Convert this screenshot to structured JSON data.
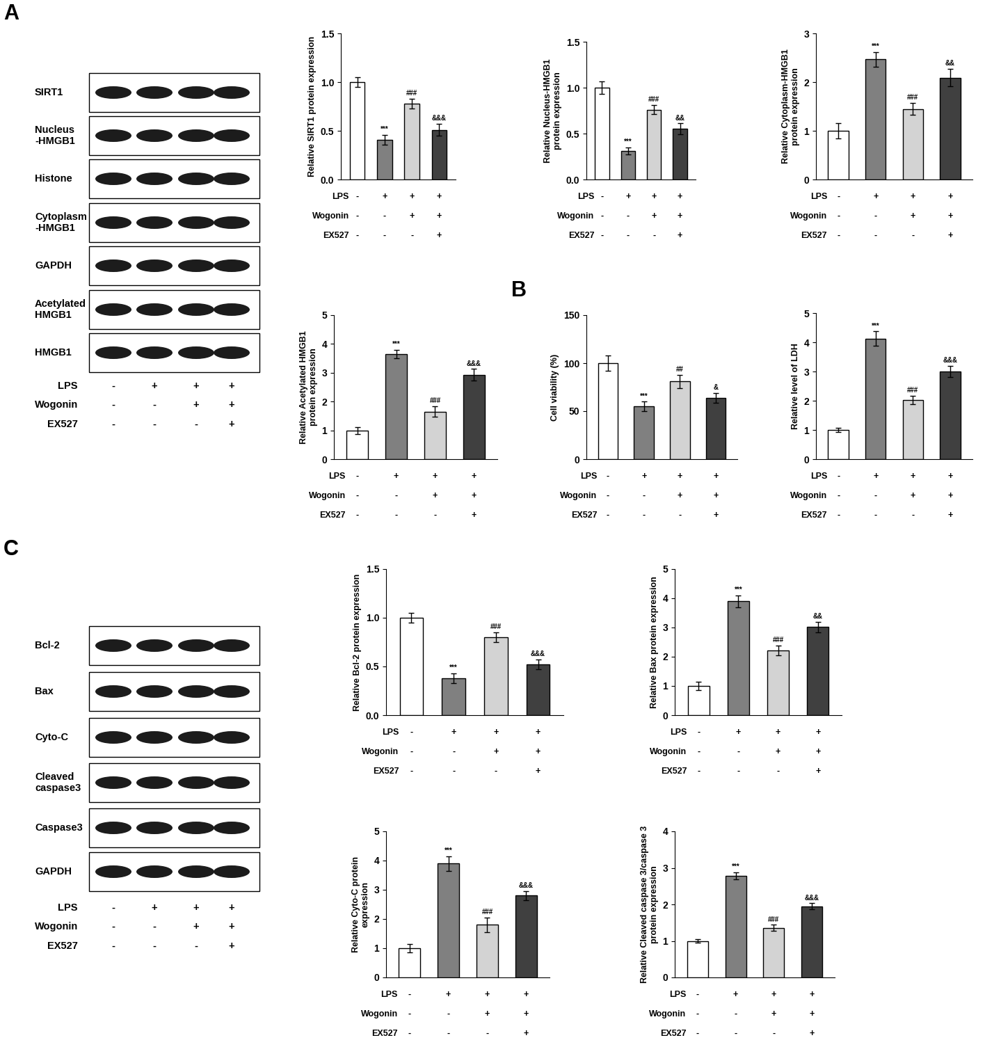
{
  "panel_labels": [
    "A",
    "B",
    "C"
  ],
  "blots": [
    {
      "panel": "A",
      "rows": [
        "SIRT1",
        "Nucleus\n-HMGB1",
        "Histone",
        "Cytoplasm\n-HMGB1",
        "GAPDH",
        "Acetylated\nHMGB1",
        "HMGB1"
      ],
      "treatments": [
        {
          "name": "LPS",
          "signs": [
            "-",
            "+",
            "+",
            "+"
          ]
        },
        {
          "name": "Wogonin",
          "signs": [
            "-",
            "-",
            "+",
            "+"
          ]
        },
        {
          "name": "EX527",
          "signs": [
            "-",
            "-",
            "-",
            "+"
          ]
        }
      ]
    },
    {
      "panel": "C",
      "rows": [
        "Bcl-2",
        "Bax",
        "Cyto-C",
        "Cleaved\ncaspase3",
        "Caspase3",
        "GAPDH"
      ],
      "treatments": [
        {
          "name": "LPS",
          "signs": [
            "-",
            "+",
            "+",
            "+"
          ]
        },
        {
          "name": "Wogonin",
          "signs": [
            "-",
            "-",
            "+",
            "+"
          ]
        },
        {
          "name": "EX527",
          "signs": [
            "-",
            "-",
            "-",
            "+"
          ]
        }
      ]
    }
  ],
  "chart_data": [
    {
      "type": "bar",
      "panel": "A",
      "y_label": "Relative SIRT1 protein expression",
      "categories": [
        null,
        null,
        null,
        null
      ],
      "values": [
        1.0,
        0.41,
        0.78,
        0.51
      ],
      "errors": [
        0.05,
        0.05,
        0.05,
        0.06
      ],
      "annotations": [
        null,
        "***",
        "###",
        "&&&"
      ],
      "colors": [
        "#ffffff",
        "#808080",
        "#d3d3d3",
        "#404040"
      ],
      "ylim": [
        0,
        1.5
      ],
      "yticks": [
        {
          "value": 0,
          "label": "0.0"
        },
        {
          "value": 0.5,
          "label": "0.5"
        },
        {
          "value": 1,
          "label": "1.0"
        },
        {
          "value": 1.5,
          "label": "1.5"
        }
      ],
      "treatments": [
        {
          "name": "LPS",
          "signs": [
            "-",
            "+",
            "+",
            "+"
          ]
        },
        {
          "name": "Wogonin",
          "signs": [
            "-",
            "-",
            "+",
            "+"
          ]
        },
        {
          "name": "EX527",
          "signs": [
            "-",
            "-",
            "-",
            "+"
          ]
        }
      ]
    },
    {
      "type": "bar",
      "panel": "A",
      "y_label": "Relative Nucleus-HMGB1\nprotein expression",
      "categories": [
        null,
        null,
        null,
        null
      ],
      "values": [
        1.0,
        0.31,
        0.76,
        0.55
      ],
      "errors": [
        0.07,
        0.04,
        0.05,
        0.06
      ],
      "annotations": [
        null,
        "***",
        "###",
        "&&"
      ],
      "colors": [
        "#ffffff",
        "#808080",
        "#d3d3d3",
        "#404040"
      ],
      "ylim": [
        0,
        1.5
      ],
      "yticks": [
        {
          "value": 0,
          "label": "0.0"
        },
        {
          "value": 0.5,
          "label": "0.5"
        },
        {
          "value": 1,
          "label": "1.0"
        },
        {
          "value": 1.5,
          "label": "1.5"
        }
      ],
      "treatments": [
        {
          "name": "LPS",
          "signs": [
            "-",
            "+",
            "+",
            "+"
          ]
        },
        {
          "name": "Wogonin",
          "signs": [
            "-",
            "-",
            "+",
            "+"
          ]
        },
        {
          "name": "EX527",
          "signs": [
            "-",
            "-",
            "-",
            "+"
          ]
        }
      ]
    },
    {
      "type": "bar",
      "panel": "A",
      "y_label": "Relative Cytoplasm-HMGB1\nprotein expression",
      "categories": [
        null,
        null,
        null,
        null
      ],
      "values": [
        1.0,
        2.47,
        1.45,
        2.09
      ],
      "errors": [
        0.16,
        0.15,
        0.12,
        0.18
      ],
      "annotations": [
        null,
        "***",
        "###",
        "&&"
      ],
      "colors": [
        "#ffffff",
        "#808080",
        "#d3d3d3",
        "#404040"
      ],
      "ylim": [
        0,
        3
      ],
      "yticks": [
        0,
        1,
        2,
        3
      ],
      "treatments": [
        {
          "name": "LPS",
          "signs": [
            "-",
            "+",
            "+",
            "+"
          ]
        },
        {
          "name": "Wogonin",
          "signs": [
            "-",
            "-",
            "+",
            "+"
          ]
        },
        {
          "name": "EX527",
          "signs": [
            "-",
            "-",
            "-",
            "+"
          ]
        }
      ]
    },
    {
      "type": "bar",
      "panel": "A",
      "y_label": "Relative Acetylated HMGB1\nprotein expression",
      "categories": [
        null,
        null,
        null,
        null
      ],
      "values": [
        1.0,
        3.65,
        1.65,
        2.93
      ],
      "errors": [
        0.12,
        0.15,
        0.18,
        0.2
      ],
      "annotations": [
        null,
        "***",
        "###",
        "&&&"
      ],
      "colors": [
        "#ffffff",
        "#808080",
        "#d3d3d3",
        "#404040"
      ],
      "ylim": [
        0,
        5
      ],
      "yticks": [
        0,
        1,
        2,
        3,
        4,
        5
      ],
      "treatments": [
        {
          "name": "LPS",
          "signs": [
            "-",
            "+",
            "+",
            "+"
          ]
        },
        {
          "name": "Wogonin",
          "signs": [
            "-",
            "-",
            "+",
            "+"
          ]
        },
        {
          "name": "EX527",
          "signs": [
            "-",
            "-",
            "-",
            "+"
          ]
        }
      ]
    },
    {
      "type": "bar",
      "panel": "B",
      "y_label": "Cell viability (%)",
      "categories": [
        null,
        null,
        null,
        null
      ],
      "values": [
        100,
        55,
        81,
        64
      ],
      "errors": [
        8,
        5,
        7,
        5
      ],
      "annotations": [
        null,
        "***",
        "##",
        "&"
      ],
      "colors": [
        "#ffffff",
        "#808080",
        "#d3d3d3",
        "#404040"
      ],
      "ylim": [
        0,
        150
      ],
      "yticks": [
        0,
        50,
        100,
        150
      ],
      "treatments": [
        {
          "name": "LPS",
          "signs": [
            "-",
            "+",
            "+",
            "+"
          ]
        },
        {
          "name": "Wogonin",
          "signs": [
            "-",
            "-",
            "+",
            "+"
          ]
        },
        {
          "name": "EX527",
          "signs": [
            "-",
            "-",
            "-",
            "+"
          ]
        }
      ]
    },
    {
      "type": "bar",
      "panel": "B",
      "y_label": "Relative level of LDH",
      "categories": [
        null,
        null,
        null,
        null
      ],
      "values": [
        1.0,
        4.12,
        2.02,
        3.0
      ],
      "errors": [
        0.07,
        0.25,
        0.15,
        0.2
      ],
      "annotations": [
        null,
        "***",
        "###",
        "&&&"
      ],
      "colors": [
        "#ffffff",
        "#808080",
        "#d3d3d3",
        "#404040"
      ],
      "ylim": [
        0,
        5
      ],
      "yticks": [
        0,
        1,
        2,
        3,
        4,
        5
      ],
      "treatments": [
        {
          "name": "LPS",
          "signs": [
            "-",
            "+",
            "+",
            "+"
          ]
        },
        {
          "name": "Wogonin",
          "signs": [
            "-",
            "-",
            "+",
            "+"
          ]
        },
        {
          "name": "EX527",
          "signs": [
            "-",
            "-",
            "-",
            "+"
          ]
        }
      ]
    },
    {
      "type": "bar",
      "panel": "C",
      "y_label": "Relative Bcl-2 protein expression",
      "categories": [
        null,
        null,
        null,
        null
      ],
      "values": [
        1.0,
        0.38,
        0.8,
        0.52
      ],
      "errors": [
        0.05,
        0.05,
        0.05,
        0.05
      ],
      "annotations": [
        null,
        "***",
        "###",
        "&&&"
      ],
      "colors": [
        "#ffffff",
        "#808080",
        "#d3d3d3",
        "#404040"
      ],
      "ylim": [
        0,
        1.5
      ],
      "yticks": [
        {
          "value": 0,
          "label": "0.0"
        },
        {
          "value": 0.5,
          "label": "0.5"
        },
        {
          "value": 1,
          "label": "1.0"
        },
        {
          "value": 1.5,
          "label": "1.5"
        }
      ],
      "treatments": [
        {
          "name": "LPS",
          "signs": [
            "-",
            "+",
            "+",
            "+"
          ]
        },
        {
          "name": "Wogonin",
          "signs": [
            "-",
            "-",
            "+",
            "+"
          ]
        },
        {
          "name": "EX527",
          "signs": [
            "-",
            "-",
            "-",
            "+"
          ]
        }
      ]
    },
    {
      "type": "bar",
      "panel": "C",
      "y_label": "Relative Bax protein expression",
      "categories": [
        null,
        null,
        null,
        null
      ],
      "values": [
        1.0,
        3.9,
        2.22,
        3.02
      ],
      "errors": [
        0.15,
        0.2,
        0.17,
        0.18
      ],
      "annotations": [
        null,
        "***",
        "###",
        "&&"
      ],
      "colors": [
        "#ffffff",
        "#808080",
        "#d3d3d3",
        "#404040"
      ],
      "ylim": [
        0,
        5
      ],
      "yticks": [
        0,
        1,
        2,
        3,
        4,
        5
      ],
      "treatments": [
        {
          "name": "LPS",
          "signs": [
            "-",
            "+",
            "+",
            "+"
          ]
        },
        {
          "name": "Wogonin",
          "signs": [
            "-",
            "-",
            "+",
            "+"
          ]
        },
        {
          "name": "EX527",
          "signs": [
            "-",
            "-",
            "-",
            "+"
          ]
        }
      ]
    },
    {
      "type": "bar",
      "panel": "C",
      "y_label": "Relative Cyto-C protein\nexpression",
      "categories": [
        null,
        null,
        null,
        null
      ],
      "values": [
        1.0,
        3.9,
        1.8,
        2.8
      ],
      "errors": [
        0.15,
        0.25,
        0.25,
        0.15
      ],
      "annotations": [
        null,
        "***",
        "###",
        "&&&"
      ],
      "colors": [
        "#ffffff",
        "#808080",
        "#d3d3d3",
        "#404040"
      ],
      "ylim": [
        0,
        5
      ],
      "yticks": [
        0,
        1,
        2,
        3,
        4,
        5
      ],
      "treatments": [
        {
          "name": "LPS",
          "signs": [
            "-",
            "+",
            "+",
            "+"
          ]
        },
        {
          "name": "Wogonin",
          "signs": [
            "-",
            "-",
            "+",
            "+"
          ]
        },
        {
          "name": "EX527",
          "signs": [
            "-",
            "-",
            "-",
            "+"
          ]
        }
      ]
    },
    {
      "type": "bar",
      "panel": "C",
      "y_label": "Relative Cleaved caspase 3/caspase 3\nprotein expression",
      "categories": [
        null,
        null,
        null,
        null
      ],
      "values": [
        1.0,
        2.78,
        1.36,
        1.95
      ],
      "errors": [
        0.05,
        0.1,
        0.08,
        0.08
      ],
      "annotations": [
        null,
        "***",
        "###",
        "&&&"
      ],
      "colors": [
        "#ffffff",
        "#808080",
        "#d3d3d3",
        "#404040"
      ],
      "ylim": [
        0,
        4
      ],
      "yticks": [
        0,
        1,
        2,
        3,
        4
      ],
      "treatments": [
        {
          "name": "LPS",
          "signs": [
            "-",
            "+",
            "+",
            "+"
          ]
        },
        {
          "name": "Wogonin",
          "signs": [
            "-",
            "-",
            "+",
            "+"
          ]
        },
        {
          "name": "EX527",
          "signs": [
            "-",
            "-",
            "-",
            "+"
          ]
        }
      ]
    }
  ]
}
